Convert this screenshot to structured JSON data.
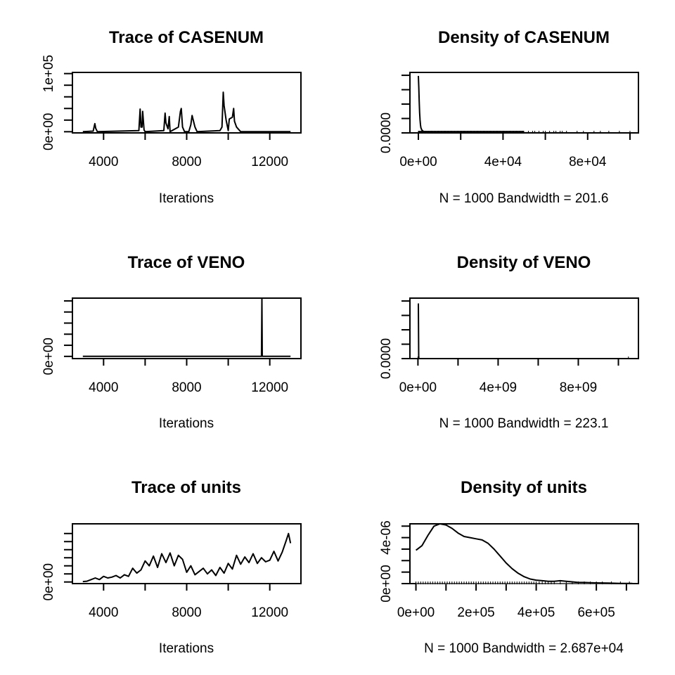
{
  "chart_data": [
    {
      "type": "line",
      "title": "Trace of CASENUM",
      "xlabel": "Iterations",
      "xlim": [
        2500,
        13500
      ],
      "ylim": [
        -2000,
        102000
      ],
      "x_ticks": [
        4000,
        6000,
        8000,
        10000,
        12000
      ],
      "x_tick_labels": [
        "4000",
        "",
        "8000",
        "",
        "12000"
      ],
      "y_ticks": [
        0,
        20000,
        40000,
        60000,
        80000,
        100000
      ],
      "y_tick_labels": [
        "0e+00",
        "",
        "",
        "",
        "",
        "1e+05"
      ],
      "series": [
        {
          "x": [
            3000,
            3500,
            3580,
            3620,
            3700,
            5700,
            5760,
            5800,
            5850,
            5880,
            5950,
            6000,
            6900,
            6960,
            7000,
            7100,
            7160,
            7200,
            7600,
            7700,
            7740,
            7800,
            7900,
            8100,
            8200,
            8260,
            8400,
            8500,
            9600,
            9700,
            9760,
            9800,
            9900,
            10000,
            10050,
            10200,
            10260,
            10300,
            10400,
            10600,
            13000
          ],
          "y": [
            0,
            1000,
            14000,
            6000,
            0,
            2000,
            39000,
            8000,
            8000,
            35000,
            3000,
            0,
            2000,
            32000,
            15000,
            5000,
            26000,
            0,
            8000,
            35000,
            40000,
            8000,
            0,
            0,
            12000,
            28000,
            8000,
            0,
            2000,
            8000,
            68000,
            45000,
            20000,
            2000,
            22000,
            25000,
            40000,
            18000,
            8000,
            0,
            0
          ]
        }
      ]
    },
    {
      "type": "line",
      "title": "Density of CASENUM",
      "subtitle": "N = 1000   Bandwidth = 201.6",
      "xlim": [
        -4000,
        104000
      ],
      "ylim": [
        0,
        0.0021
      ],
      "x_ticks": [
        0,
        20000,
        40000,
        60000,
        80000,
        100000
      ],
      "x_tick_labels": [
        "0e+00",
        "",
        "4e+04",
        "",
        "8e+04",
        ""
      ],
      "y_ticks": [
        0,
        0.0005,
        0.001,
        0.0015,
        0.002
      ],
      "y_tick_labels": [
        "0.0000",
        "",
        "",
        "",
        ""
      ],
      "series": [
        {
          "x": [
            0,
            200,
            400,
            600,
            800,
            1000,
            1200,
            1600,
            2400,
            4000,
            8000,
            100000
          ],
          "y": [
            0.00198,
            0.0016,
            0.0011,
            0.0007,
            0.00045,
            0.00028,
            0.00018,
            0.0001,
            5e-05,
            2e-05,
            4e-06,
            5e-07
          ]
        }
      ],
      "rug_x": [
        0,
        300,
        600,
        900,
        1200,
        1500,
        1800,
        2100,
        2400,
        2700,
        3000,
        3300,
        3600,
        3900,
        4200,
        4500,
        4800,
        5100,
        5400,
        5700,
        6000,
        6300,
        6600,
        6900,
        7200,
        7500,
        7800,
        8100,
        8400,
        8700,
        9000,
        9300,
        9600,
        9900,
        10200,
        10500,
        10800,
        11100,
        11400,
        11700,
        12000,
        12300,
        12600,
        12900,
        13200,
        13500,
        13800,
        14100,
        14400,
        14700,
        15000,
        15300,
        15600,
        15900,
        16200,
        16500,
        16800,
        17100,
        17400,
        17700,
        18000,
        18300,
        18600,
        18900,
        19200,
        19500,
        19800,
        20100,
        20400,
        20700,
        21000,
        21300,
        21600,
        21900,
        22200,
        22500,
        22800,
        23100,
        23400,
        23700,
        24000,
        24300,
        24600,
        24900,
        25200,
        25500,
        25800,
        26100,
        26400,
        26700,
        27000,
        27300,
        27600,
        27900,
        28200,
        28500,
        28800,
        29100,
        29400,
        29700,
        30000,
        30300,
        30600,
        30900,
        31200,
        31500,
        31800,
        32100,
        32400,
        32700,
        33000,
        33300,
        33600,
        33900,
        34200,
        34500,
        34800,
        35100,
        35400,
        35700,
        36000,
        36300,
        36600,
        36900,
        37200,
        37500,
        37800,
        38100,
        38400,
        38700,
        39000,
        39300,
        39600,
        39900,
        40200,
        40500,
        40800,
        41100,
        41400,
        41700,
        42000,
        42300,
        42600,
        42900,
        43200,
        43500,
        43800,
        44100,
        44400,
        44700,
        45000,
        45300,
        45600,
        45900,
        46200,
        46500,
        46800,
        47100,
        47400,
        47700,
        48000,
        48300,
        48600,
        48900,
        49200,
        49500,
        49800,
        52000,
        54000,
        55000,
        57000,
        59000,
        60000,
        62000,
        64000,
        65000,
        67000,
        68000,
        70000,
        75000,
        78000,
        83000,
        86000,
        90000,
        95000,
        100000
      ]
    },
    {
      "type": "line",
      "title": "Trace of VENO",
      "xlabel": "Iterations",
      "xlim": [
        2500,
        13500
      ],
      "ylim": [
        -400000000,
        10500000000
      ],
      "x_ticks": [
        4000,
        6000,
        8000,
        10000,
        12000
      ],
      "x_tick_labels": [
        "4000",
        "",
        "8000",
        "",
        "12000"
      ],
      "y_ticks": [
        0,
        2000000000,
        4000000000,
        6000000000,
        8000000000,
        10000000000
      ],
      "y_tick_labels": [
        "0e+00",
        "",
        "",
        "",
        "",
        ""
      ],
      "series": [
        {
          "x": [
            3000,
            11600,
            11620,
            11640,
            13000
          ],
          "y": [
            0,
            0,
            10500000000,
            0,
            0
          ]
        }
      ]
    },
    {
      "type": "line",
      "title": "Density of VENO",
      "subtitle": "N = 1000   Bandwidth = 223.1",
      "xlim": [
        -400000000,
        11000000000
      ],
      "ylim": [
        0,
        0.0021
      ],
      "x_ticks": [
        0,
        2000000000,
        4000000000,
        6000000000,
        8000000000,
        10000000000
      ],
      "x_tick_labels": [
        "0e+00",
        "",
        "4e+09",
        "",
        "8e+09",
        ""
      ],
      "y_ticks": [
        0,
        0.0005,
        0.001,
        0.0015,
        0.002
      ],
      "y_tick_labels": [
        "0.0000",
        "",
        "",
        "",
        ""
      ],
      "series": [
        {
          "x": [
            0,
            20000000,
            40000000,
            60000000,
            10500000000
          ],
          "y": [
            0.0019,
            0.0019,
            1e-05,
            0,
            0
          ]
        }
      ],
      "rug_x": [
        0,
        15000000,
        30000000,
        45000000,
        60000000,
        10500000000
      ]
    },
    {
      "type": "line",
      "title": "Trace of units",
      "xlabel": "Iterations",
      "xlim": [
        2500,
        13500
      ],
      "ylim": [
        -20000,
        720000
      ],
      "x_ticks": [
        4000,
        6000,
        8000,
        10000,
        12000
      ],
      "x_tick_labels": [
        "4000",
        "",
        "8000",
        "",
        "12000"
      ],
      "y_ticks": [
        0,
        100000,
        200000,
        300000,
        400000,
        500000,
        600000
      ],
      "y_tick_labels": [
        "0e+00",
        "",
        "",
        "",
        "",
        "",
        ""
      ],
      "series": [
        {
          "x": [
            3000,
            3200,
            3400,
            3600,
            3800,
            4000,
            4200,
            4400,
            4600,
            4800,
            5000,
            5200,
            5400,
            5600,
            5800,
            6000,
            6200,
            6400,
            6600,
            6800,
            7000,
            7200,
            7400,
            7600,
            7800,
            8000,
            8200,
            8400,
            8600,
            8800,
            9000,
            9200,
            9400,
            9600,
            9800,
            10000,
            10200,
            10400,
            10600,
            10800,
            11000,
            11200,
            11400,
            11600,
            11800,
            12000,
            12200,
            12400,
            12600,
            12800,
            12900,
            13000
          ],
          "y": [
            5000,
            10000,
            30000,
            50000,
            30000,
            70000,
            50000,
            60000,
            80000,
            50000,
            90000,
            70000,
            170000,
            110000,
            150000,
            260000,
            200000,
            320000,
            180000,
            350000,
            240000,
            360000,
            200000,
            330000,
            280000,
            120000,
            200000,
            90000,
            130000,
            170000,
            100000,
            150000,
            80000,
            180000,
            110000,
            230000,
            160000,
            330000,
            220000,
            310000,
            240000,
            350000,
            230000,
            300000,
            250000,
            270000,
            380000,
            260000,
            370000,
            520000,
            600000,
            480000
          ]
        }
      ]
    },
    {
      "type": "line",
      "title": "Density of units",
      "subtitle": "N = 1000   Bandwidth = 2.687e+04",
      "xlim": [
        -20000,
        740000
      ],
      "ylim": [
        0,
        5.2e-06
      ],
      "x_ticks": [
        0,
        100000,
        200000,
        300000,
        400000,
        500000,
        600000,
        700000
      ],
      "x_tick_labels": [
        "0e+00",
        "",
        "2e+05",
        "",
        "4e+05",
        "",
        "6e+05",
        ""
      ],
      "y_ticks": [
        0,
        1e-06,
        2e-06,
        3e-06,
        4e-06,
        5e-06
      ],
      "y_tick_labels": [
        "0e+00",
        "",
        "",
        "",
        "4e-06",
        ""
      ],
      "series": [
        {
          "x": [
            0,
            20000,
            40000,
            60000,
            80000,
            100000,
            120000,
            140000,
            160000,
            180000,
            200000,
            220000,
            240000,
            260000,
            280000,
            300000,
            320000,
            340000,
            360000,
            380000,
            400000,
            420000,
            440000,
            460000,
            480000,
            500000,
            520000,
            540000,
            560000,
            580000,
            600000,
            640000,
            680000,
            720000
          ],
          "y": [
            2.9e-06,
            3.3e-06,
            4.2e-06,
            5e-06,
            5.2e-06,
            5.1e-06,
            4.8e-06,
            4.4e-06,
            4.1e-06,
            4e-06,
            3.9e-06,
            3.8e-06,
            3.5e-06,
            3e-06,
            2.4e-06,
            1.8e-06,
            1.3e-06,
            9e-07,
            6e-07,
            4e-07,
            3e-07,
            2.5e-07,
            2e-07,
            2e-07,
            2.5e-07,
            2e-07,
            1.5e-07,
            1e-07,
            1e-07,
            8e-08,
            6e-08,
            4e-08,
            2e-08,
            1e-08
          ]
        }
      ],
      "rug_x": [
        0,
        8000,
        16000,
        24000,
        32000,
        40000,
        48000,
        56000,
        64000,
        72000,
        80000,
        88000,
        96000,
        104000,
        112000,
        120000,
        128000,
        136000,
        144000,
        152000,
        160000,
        168000,
        176000,
        184000,
        192000,
        200000,
        208000,
        216000,
        224000,
        232000,
        240000,
        248000,
        256000,
        264000,
        272000,
        280000,
        288000,
        296000,
        304000,
        312000,
        320000,
        328000,
        336000,
        344000,
        352000,
        360000,
        368000,
        376000,
        384000,
        392000,
        400000,
        410000,
        420000,
        430000,
        440000,
        450000,
        460000,
        480000,
        500000,
        520000,
        540000,
        560000,
        580000,
        600000,
        620000,
        650000,
        680000,
        710000
      ]
    }
  ]
}
